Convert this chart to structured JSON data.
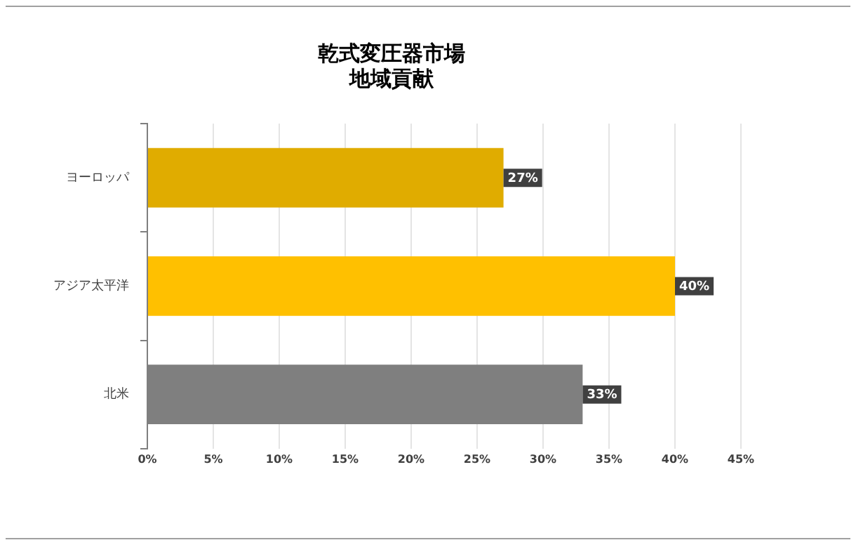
{
  "chart_data": {
    "type": "bar",
    "orientation": "horizontal",
    "title": "乾式変圧器市場",
    "subtitle": "地域貢献",
    "categories": [
      "ヨーロッパ",
      "アジア太平洋",
      "北米"
    ],
    "values": [
      27,
      40,
      33
    ],
    "colors": [
      "#e0ac00",
      "#ffc000",
      "#7f7f7f"
    ],
    "value_labels": [
      "27%",
      "40%",
      "33%"
    ],
    "xlim": [
      0,
      45
    ],
    "xticks": [
      {
        "value": 0,
        "label": "0%"
      },
      {
        "value": 5,
        "label": "5%"
      },
      {
        "value": 10,
        "label": "10%"
      },
      {
        "value": 15,
        "label": "15%"
      },
      {
        "value": 20,
        "label": "20%"
      },
      {
        "value": 25,
        "label": "25%"
      },
      {
        "value": 30,
        "label": "30%"
      },
      {
        "value": 35,
        "label": "35%"
      },
      {
        "value": 40,
        "label": "40%"
      },
      {
        "value": 45,
        "label": "45%"
      }
    ],
    "grid": "x",
    "legend": false
  }
}
